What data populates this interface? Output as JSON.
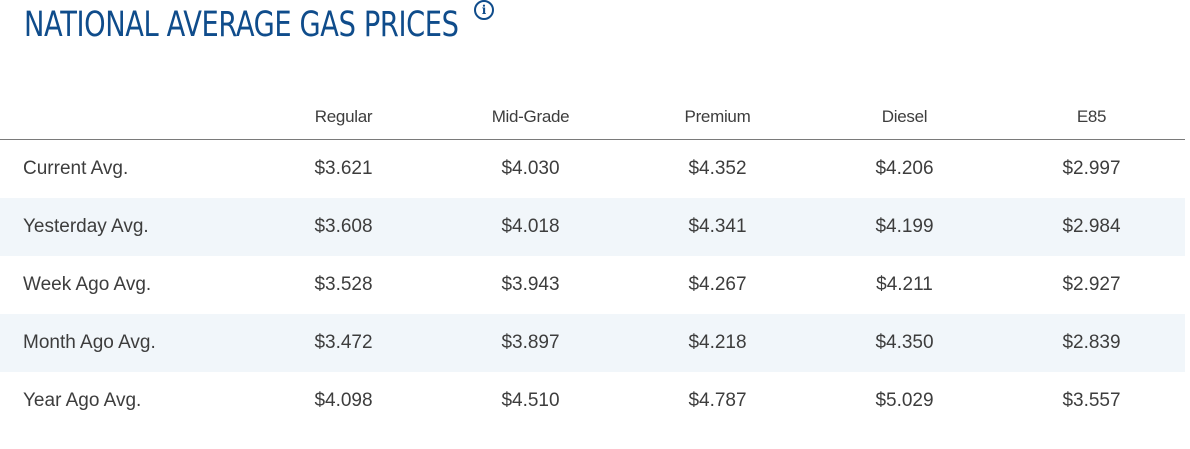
{
  "header": {
    "title": "NATIONAL AVERAGE GAS PRICES",
    "info_icon": "info-icon"
  },
  "colors": {
    "title": "#0f4c8b",
    "row_stripe": "#f1f6fa",
    "text": "#3d3d3d"
  },
  "table": {
    "columns": [
      "",
      "Regular",
      "Mid-Grade",
      "Premium",
      "Diesel",
      "E85"
    ],
    "rows": [
      {
        "label": "Current Avg.",
        "values": [
          "$3.621",
          "$4.030",
          "$4.352",
          "$4.206",
          "$2.997"
        ]
      },
      {
        "label": "Yesterday Avg.",
        "values": [
          "$3.608",
          "$4.018",
          "$4.341",
          "$4.199",
          "$2.984"
        ]
      },
      {
        "label": "Week Ago Avg.",
        "values": [
          "$3.528",
          "$3.943",
          "$4.267",
          "$4.211",
          "$2.927"
        ]
      },
      {
        "label": "Month Ago Avg.",
        "values": [
          "$3.472",
          "$3.897",
          "$4.218",
          "$4.350",
          "$2.839"
        ]
      },
      {
        "label": "Year Ago Avg.",
        "values": [
          "$4.098",
          "$4.510",
          "$4.787",
          "$5.029",
          "$3.557"
        ]
      }
    ]
  }
}
